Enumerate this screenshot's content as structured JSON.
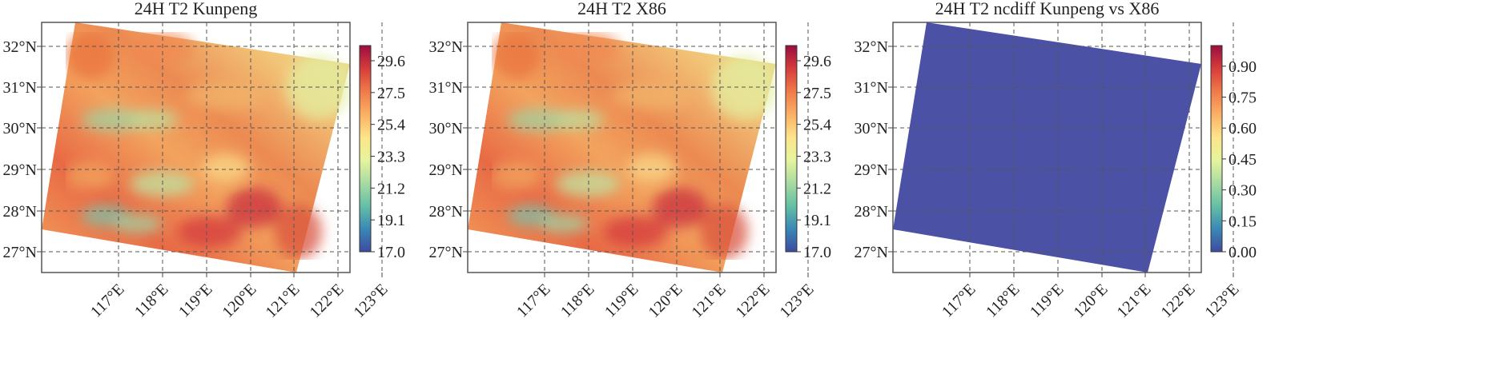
{
  "chart_data": [
    {
      "type": "heatmap",
      "title": "24H T2 Kunpeng",
      "x_ticks": [
        "117°E",
        "118°E",
        "119°E",
        "120°E",
        "121°E",
        "122°E",
        "123°E"
      ],
      "y_ticks": [
        "32°N",
        "31°N",
        "30°N",
        "29°N",
        "28°N",
        "27°N"
      ],
      "xlim": [
        116.3,
        123.7
      ],
      "ylim": [
        26.5,
        32.6
      ],
      "grid": true,
      "colormap": "Spectral_r",
      "colorbar": {
        "min": 17.0,
        "max": 30.6,
        "ticks": [
          "17.0",
          "19.1",
          "21.2",
          "23.3",
          "25.4",
          "27.5",
          "29.6"
        ]
      }
    },
    {
      "type": "heatmap",
      "title": "24H T2 X86",
      "x_ticks": [
        "117°E",
        "118°E",
        "119°E",
        "120°E",
        "121°E",
        "122°E",
        "123°E"
      ],
      "y_ticks": [
        "32°N",
        "31°N",
        "30°N",
        "29°N",
        "28°N",
        "27°N"
      ],
      "xlim": [
        116.3,
        123.7
      ],
      "ylim": [
        26.5,
        32.6
      ],
      "grid": true,
      "colormap": "Spectral_r",
      "colorbar": {
        "min": 17.0,
        "max": 30.6,
        "ticks": [
          "17.0",
          "19.1",
          "21.2",
          "23.3",
          "25.4",
          "27.5",
          "29.6"
        ]
      }
    },
    {
      "type": "heatmap",
      "title": "24H T2 ncdiff Kunpeng vs X86",
      "x_ticks": [
        "117°E",
        "118°E",
        "119°E",
        "120°E",
        "121°E",
        "122°E",
        "123°E"
      ],
      "y_ticks": [
        "32°N",
        "31°N",
        "30°N",
        "29°N",
        "28°N",
        "27°N"
      ],
      "xlim": [
        116.3,
        123.7
      ],
      "ylim": [
        26.5,
        32.6
      ],
      "grid": true,
      "colormap": "Spectral_r",
      "uniform_value": 0.0,
      "colorbar": {
        "min": 0.0,
        "max": 1.0,
        "ticks": [
          "0.00",
          "0.15",
          "0.30",
          "0.45",
          "0.60",
          "0.75",
          "0.90"
        ]
      }
    }
  ],
  "colors": {
    "gradient": [
      "#3d4ba1",
      "#3a88b6",
      "#64c0a5",
      "#a8dba2",
      "#e6f49b",
      "#fde48a",
      "#fbb064",
      "#f07a4a",
      "#d73c3b",
      "#9b0e3f"
    ],
    "diff_fill": "#4b51a4",
    "grid": "#555555",
    "frame": "#555555"
  }
}
